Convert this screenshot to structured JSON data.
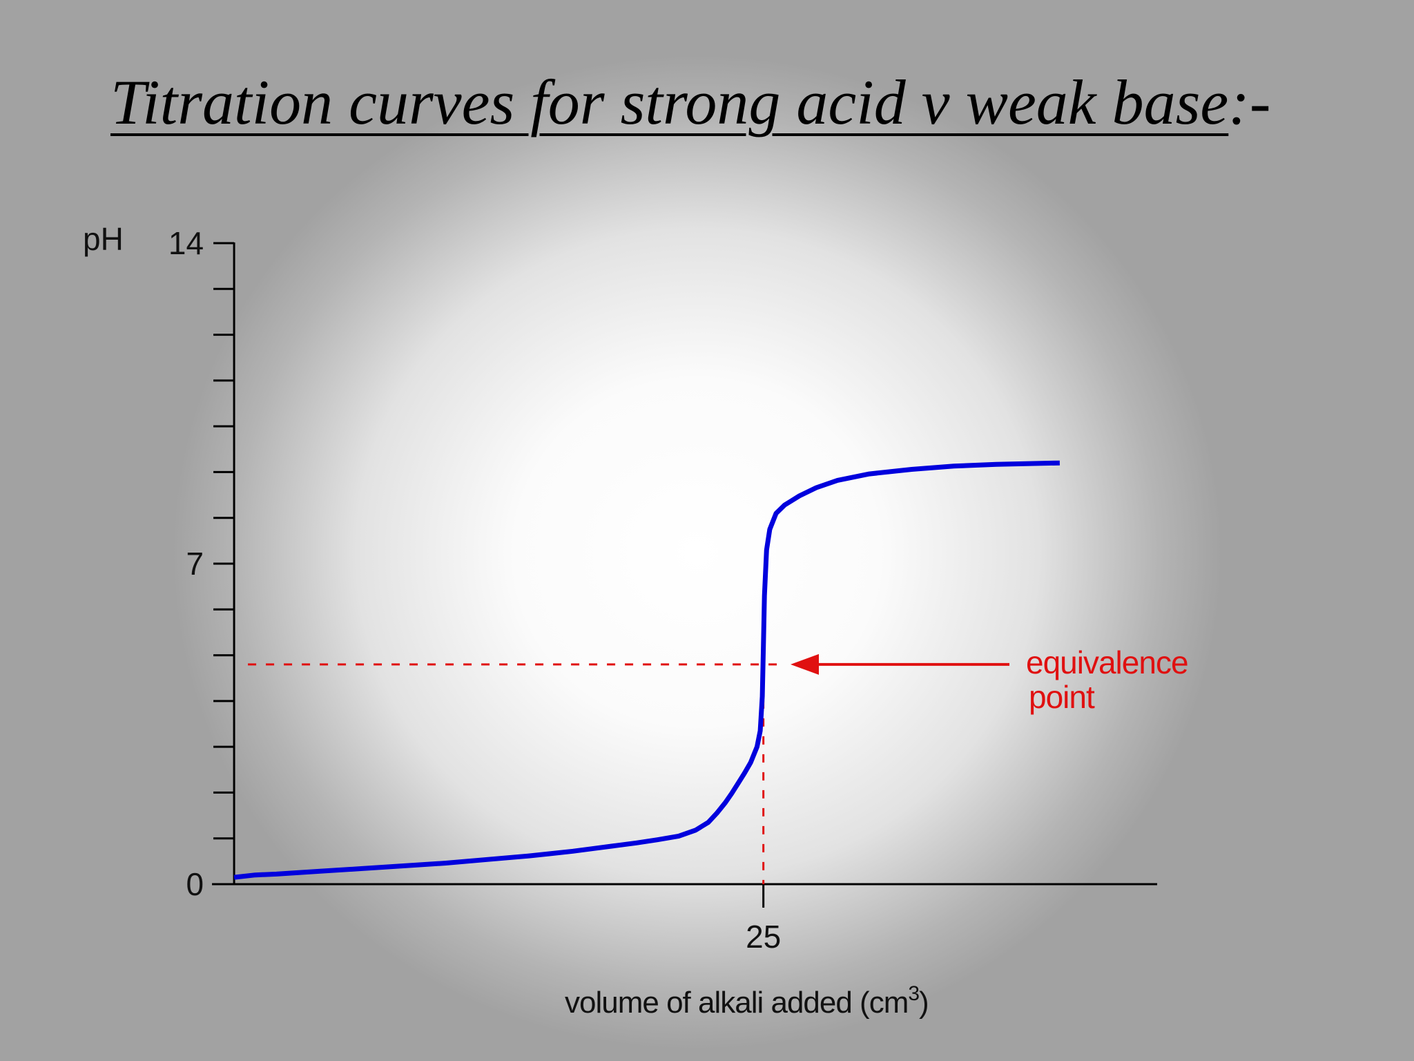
{
  "slide": {
    "title_main": "Titration curves for strong acid v weak base",
    "title_suffix": ":-"
  },
  "chart_data": {
    "type": "line",
    "ylabel": "pH",
    "xlabel": "volume of alkali added (cm",
    "xlabel_superscript": "3",
    "xlabel_close": ")",
    "yticks": [
      {
        "value": 0,
        "label": "0"
      },
      {
        "value": 7,
        "label": "7"
      },
      {
        "value": 14,
        "label": "14"
      }
    ],
    "yminor_ticks": [
      1,
      2,
      3,
      4,
      5,
      6,
      8,
      9,
      10,
      11,
      12,
      13
    ],
    "xticks": [
      {
        "value": 25,
        "label": "25"
      }
    ],
    "ylim": [
      0,
      14
    ],
    "xlim": [
      -0.1,
      43.6
    ],
    "colors": {
      "curve": "#0000dd",
      "annotation": "#e01010",
      "axis": "#000000"
    },
    "series": [
      {
        "x": [
          0,
          1,
          2,
          4,
          6,
          8,
          10,
          12,
          14,
          15,
          16,
          17,
          18,
          19,
          20,
          21,
          21.8,
          22.4,
          22.8,
          23.2,
          23.5,
          23.8,
          24.1,
          24.4,
          24.7,
          24.85,
          24.95,
          25.0,
          25.05,
          25.15,
          25.3,
          25.6,
          26,
          26.7,
          27.5,
          28.5,
          30,
          32,
          34,
          36,
          39
        ],
        "y": [
          0.15,
          0.2,
          0.22,
          0.28,
          0.34,
          0.4,
          0.46,
          0.54,
          0.62,
          0.67,
          0.72,
          0.78,
          0.84,
          0.9,
          0.97,
          1.05,
          1.18,
          1.35,
          1.55,
          1.78,
          1.98,
          2.2,
          2.42,
          2.66,
          3.0,
          3.35,
          4.1,
          5.2,
          6.3,
          7.3,
          7.75,
          8.1,
          8.28,
          8.48,
          8.66,
          8.82,
          8.96,
          9.06,
          9.13,
          9.17,
          9.2
        ]
      }
    ],
    "equivalence": {
      "x": 25,
      "y": 4.8
    },
    "annotation": {
      "line1": "equivalence",
      "line2": "point"
    }
  }
}
